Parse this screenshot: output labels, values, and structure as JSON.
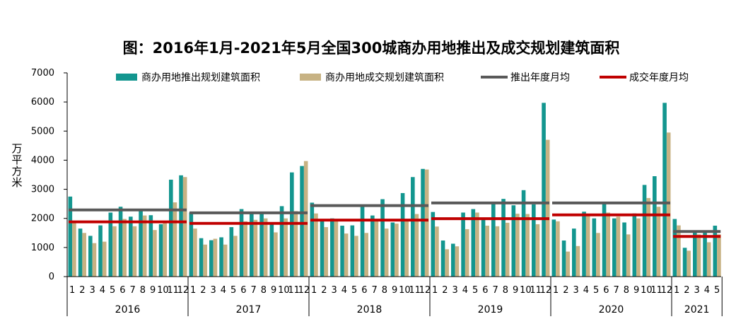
{
  "chart_data": {
    "type": "bar",
    "title": "图：2016年1月-2021年5月全国300城商办用地推出及成交规划建筑面积",
    "ylabel": "万平方米",
    "ylim": [
      0,
      7000
    ],
    "yticks": [
      0,
      1000,
      2000,
      3000,
      4000,
      5000,
      6000,
      7000
    ],
    "legend_position": "top",
    "colors": {
      "supply": "#13968f",
      "deal": "#c7b283",
      "supply_avg": "#595959",
      "deal_avg": "#c00000",
      "axis": "#000000"
    },
    "groups": [
      {
        "year": "2016",
        "months": [
          "1",
          "2",
          "3",
          "4",
          "5",
          "6",
          "7",
          "8",
          "9",
          "10",
          "11",
          "12"
        ],
        "supply": [
          2750,
          1650,
          1400,
          1760,
          2200,
          2400,
          2060,
          2260,
          2110,
          1800,
          3330,
          3480
        ],
        "deal": [
          1850,
          1500,
          1150,
          1200,
          1730,
          1980,
          1730,
          2100,
          1600,
          1850,
          2550,
          3420
        ],
        "supply_avg": 2290,
        "deal_avg": 1880
      },
      {
        "year": "2017",
        "months": [
          "1",
          "2",
          "3",
          "4",
          "5",
          "6",
          "7",
          "8",
          "9",
          "10",
          "11",
          "12"
        ],
        "supply": [
          2200,
          1320,
          1250,
          1350,
          1700,
          2320,
          2180,
          2180,
          1800,
          2420,
          3580,
          3800
        ],
        "deal": [
          1650,
          1100,
          1300,
          1100,
          1400,
          1900,
          1950,
          2000,
          1520,
          2000,
          2250,
          3970
        ],
        "supply_avg": 2190,
        "deal_avg": 1830
      },
      {
        "year": "2018",
        "months": [
          "1",
          "2",
          "3",
          "4",
          "5",
          "6",
          "7",
          "8",
          "9",
          "10",
          "11",
          "12"
        ],
        "supply": [
          2540,
          1920,
          2000,
          1750,
          1760,
          2430,
          2100,
          2660,
          1860,
          2870,
          3420,
          3700
        ],
        "deal": [
          2170,
          1700,
          1920,
          1480,
          1400,
          1500,
          1900,
          1650,
          1820,
          1960,
          2150,
          3680
        ],
        "supply_avg": 2440,
        "deal_avg": 1940
      },
      {
        "year": "2019",
        "months": [
          "1",
          "2",
          "3",
          "4",
          "5",
          "6",
          "7",
          "8",
          "9",
          "10",
          "11",
          "12"
        ],
        "supply": [
          2220,
          1240,
          1130,
          2200,
          2320,
          2000,
          2550,
          2670,
          2450,
          2970,
          2480,
          5970
        ],
        "deal": [
          1720,
          940,
          1040,
          1630,
          2200,
          1750,
          1730,
          1850,
          2160,
          2150,
          1800,
          4700
        ],
        "supply_avg": 2530,
        "deal_avg": 1990
      },
      {
        "year": "2020",
        "months": [
          "1",
          "2",
          "3",
          "4",
          "5",
          "6",
          "7",
          "8",
          "9",
          "10",
          "11",
          "12"
        ],
        "supply": [
          1960,
          1240,
          1650,
          2230,
          2000,
          2500,
          2000,
          1860,
          2170,
          3150,
          3450,
          5970
        ],
        "deal": [
          1900,
          860,
          1050,
          2100,
          1500,
          2200,
          2060,
          1450,
          2000,
          2700,
          2400,
          4950
        ],
        "supply_avg": 2530,
        "deal_avg": 2120
      },
      {
        "year": "2021",
        "months": [
          "1",
          "2",
          "3",
          "4",
          "5"
        ],
        "supply": [
          1980,
          990,
          1520,
          1540,
          1750
        ],
        "deal": [
          1760,
          890,
          1450,
          1180,
          1450
        ],
        "supply_avg": 1550,
        "deal_avg": 1380
      }
    ],
    "legend": [
      {
        "key": "supply",
        "label": "商办用地推出规划建筑面积",
        "shape": "rect"
      },
      {
        "key": "deal",
        "label": "商办用地成交规划建筑面积",
        "shape": "rect"
      },
      {
        "key": "supply_avg",
        "label": "推出年度月均",
        "shape": "line"
      },
      {
        "key": "deal_avg",
        "label": "成交年度月均",
        "shape": "line"
      }
    ]
  }
}
